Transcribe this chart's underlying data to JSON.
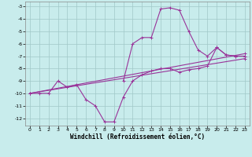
{
  "xlabel": "Windchill (Refroidissement éolien,°C)",
  "background_color": "#c8ecec",
  "grid_color": "#a0c8c8",
  "line_color": "#993399",
  "xlim": [
    -0.5,
    23.5
  ],
  "ylim": [
    -12.6,
    -2.6
  ],
  "xticks": [
    0,
    1,
    2,
    3,
    4,
    5,
    6,
    7,
    8,
    9,
    10,
    11,
    12,
    13,
    14,
    15,
    16,
    17,
    18,
    19,
    20,
    21,
    22,
    23
  ],
  "yticks": [
    -12,
    -11,
    -10,
    -9,
    -8,
    -7,
    -6,
    -5,
    -4,
    -3
  ],
  "curve1_x": [
    0,
    1,
    2,
    3,
    4,
    5,
    6,
    7,
    8,
    9,
    10,
    11,
    12,
    13,
    14,
    15,
    16,
    17,
    18,
    19,
    20,
    21,
    22,
    23
  ],
  "curve1_y": [
    -10.0,
    -10.0,
    -10.0,
    -9.0,
    -9.5,
    -9.3,
    -10.5,
    -11.0,
    -12.3,
    -12.3,
    -10.3,
    -9.0,
    -8.5,
    -8.2,
    -8.0,
    -8.0,
    -8.3,
    -8.1,
    -8.0,
    -7.8,
    -6.3,
    -6.9,
    -7.0,
    -7.0
  ],
  "curve2_x": [
    0,
    23
  ],
  "curve2_y": [
    -10.0,
    -7.2
  ],
  "curve3_x": [
    0,
    23
  ],
  "curve3_y": [
    -10.0,
    -6.8
  ],
  "curve4_x": [
    10,
    11,
    12,
    13,
    14,
    15,
    16,
    17,
    18,
    19,
    20,
    21,
    22,
    23
  ],
  "curve4_y": [
    -9.0,
    -6.0,
    -5.5,
    -5.5,
    -3.2,
    -3.1,
    -3.3,
    -5.0,
    -6.5,
    -7.0,
    -6.3,
    -6.9,
    -7.0,
    -7.0
  ]
}
